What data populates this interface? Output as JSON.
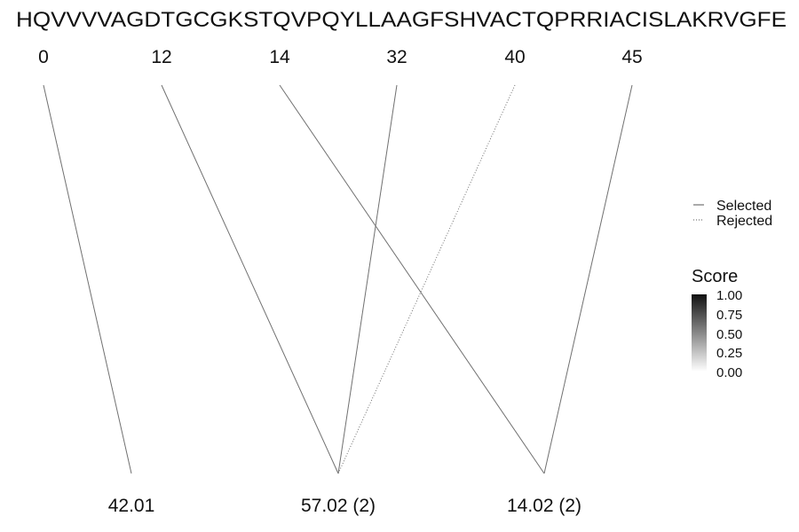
{
  "chart_data": {
    "type": "diagram",
    "sequence": "HQVVVVAGDTGCGKSTQVPQYLLAAGFSHVACTQPRRIACISLAKRVGFE",
    "positions": [
      "0",
      "12",
      "14",
      "32",
      "40",
      "45"
    ],
    "masses": [
      "42.01",
      "57.02 (2)",
      "14.02 (2)"
    ],
    "links": [
      {
        "from": 0,
        "to": 0,
        "status": "Selected",
        "score": 0.6
      },
      {
        "from": 1,
        "to": 1,
        "status": "Selected",
        "score": 0.6
      },
      {
        "from": 3,
        "to": 1,
        "status": "Selected",
        "score": 0.6
      },
      {
        "from": 4,
        "to": 1,
        "status": "Rejected",
        "score": 0.6
      },
      {
        "from": 2,
        "to": 2,
        "status": "Selected",
        "score": 0.6
      },
      {
        "from": 5,
        "to": 2,
        "status": "Selected",
        "score": 0.6
      }
    ],
    "legend": {
      "linetype": [
        "Selected",
        "Rejected"
      ],
      "score_title": "Score",
      "score_ticks": [
        "1.00",
        "0.75",
        "0.50",
        "0.25",
        "0.00"
      ],
      "score_range": [
        0,
        1
      ]
    }
  }
}
